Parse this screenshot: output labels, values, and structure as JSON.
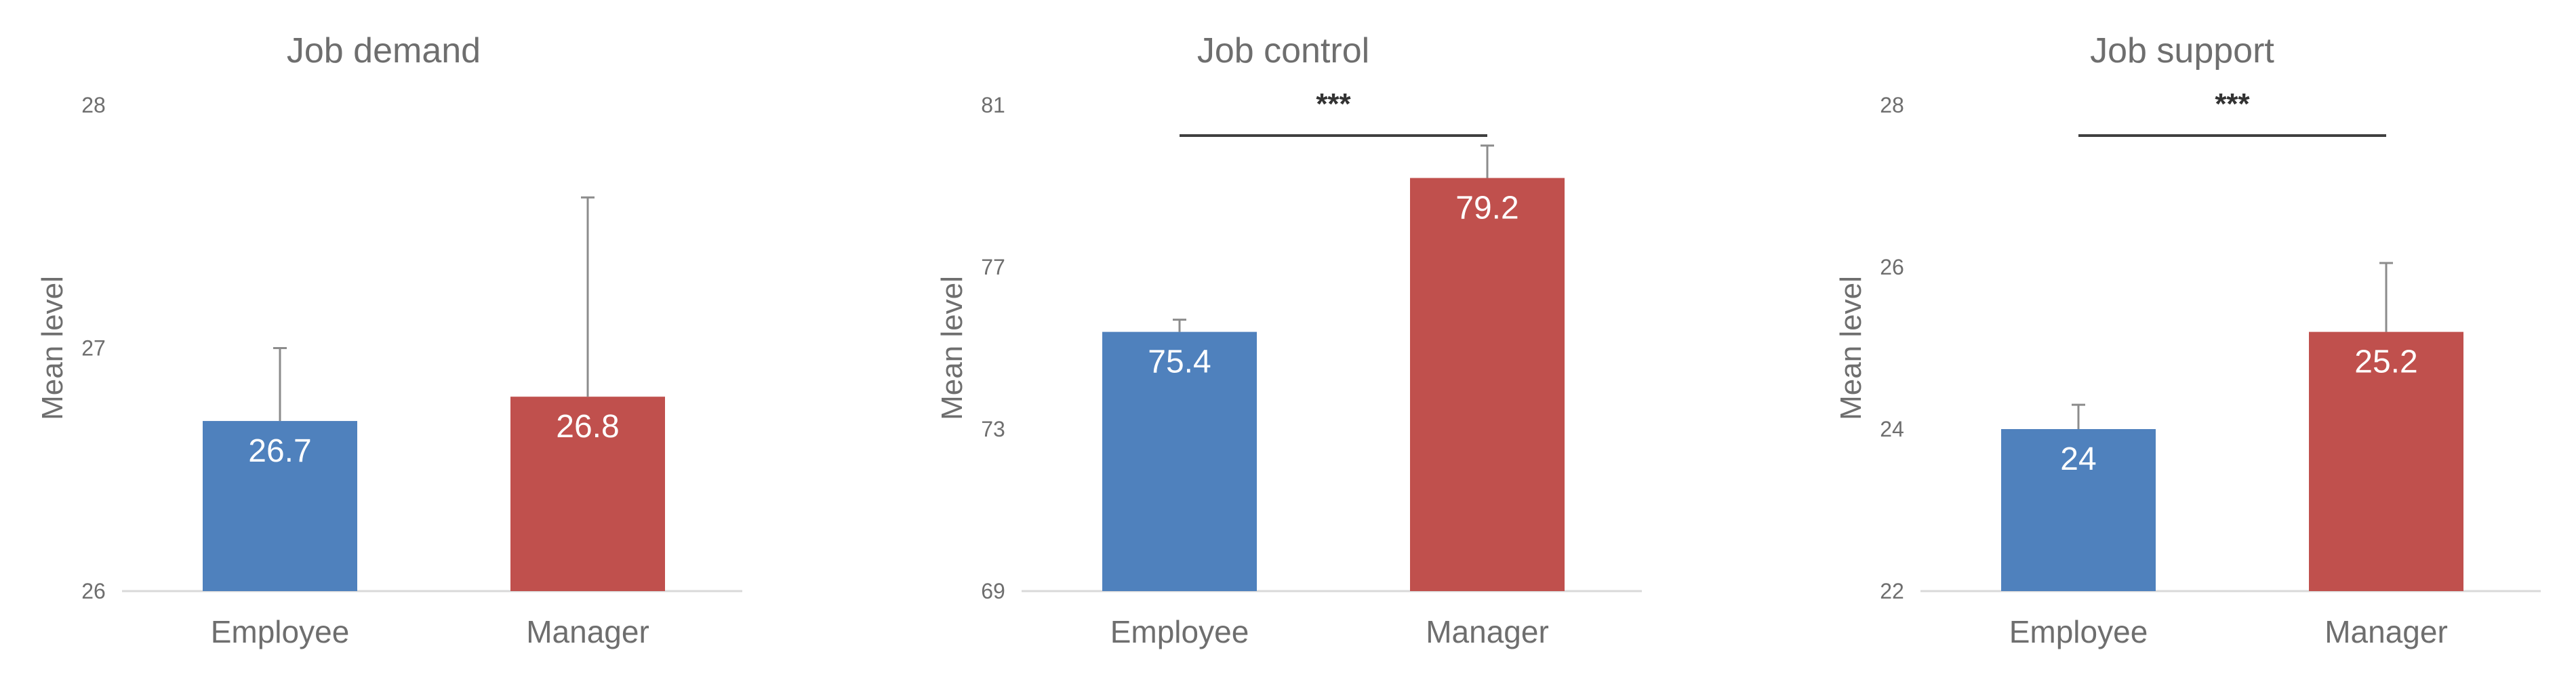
{
  "colors": {
    "employee": "#4f81bd",
    "manager": "#c0504d",
    "axis": "#d9d9d9",
    "errorbar": "#8c8c8c",
    "bracket": "#404040"
  },
  "chart_data": [
    {
      "type": "bar",
      "title": "Job demand",
      "ylabel": "Mean level",
      "categories": [
        "Employee",
        "Manager"
      ],
      "values": [
        26.7,
        26.8
      ],
      "value_labels": [
        "26.7",
        "26.8"
      ],
      "error_upper": [
        27.0,
        27.62
      ],
      "ylim": [
        26,
        28
      ],
      "yticks": [
        "26",
        "27",
        "28"
      ],
      "significance": ""
    },
    {
      "type": "bar",
      "title": "Job control",
      "ylabel": "Mean level",
      "categories": [
        "Employee",
        "Manager"
      ],
      "values": [
        75.4,
        79.2
      ],
      "value_labels": [
        "75.4",
        "79.2"
      ],
      "error_upper": [
        75.7,
        80.0
      ],
      "ylim": [
        69,
        81
      ],
      "yticks": [
        "69",
        "73",
        "77",
        "81"
      ],
      "significance": "***"
    },
    {
      "type": "bar",
      "title": "Job support",
      "ylabel": "Mean level",
      "categories": [
        "Employee",
        "Manager"
      ],
      "values": [
        24,
        25.2
      ],
      "value_labels": [
        "24",
        "25.2"
      ],
      "error_upper": [
        24.3,
        26.05
      ],
      "ylim": [
        22,
        28
      ],
      "yticks": [
        "22",
        "24",
        "26",
        "28"
      ],
      "significance": "***"
    }
  ]
}
